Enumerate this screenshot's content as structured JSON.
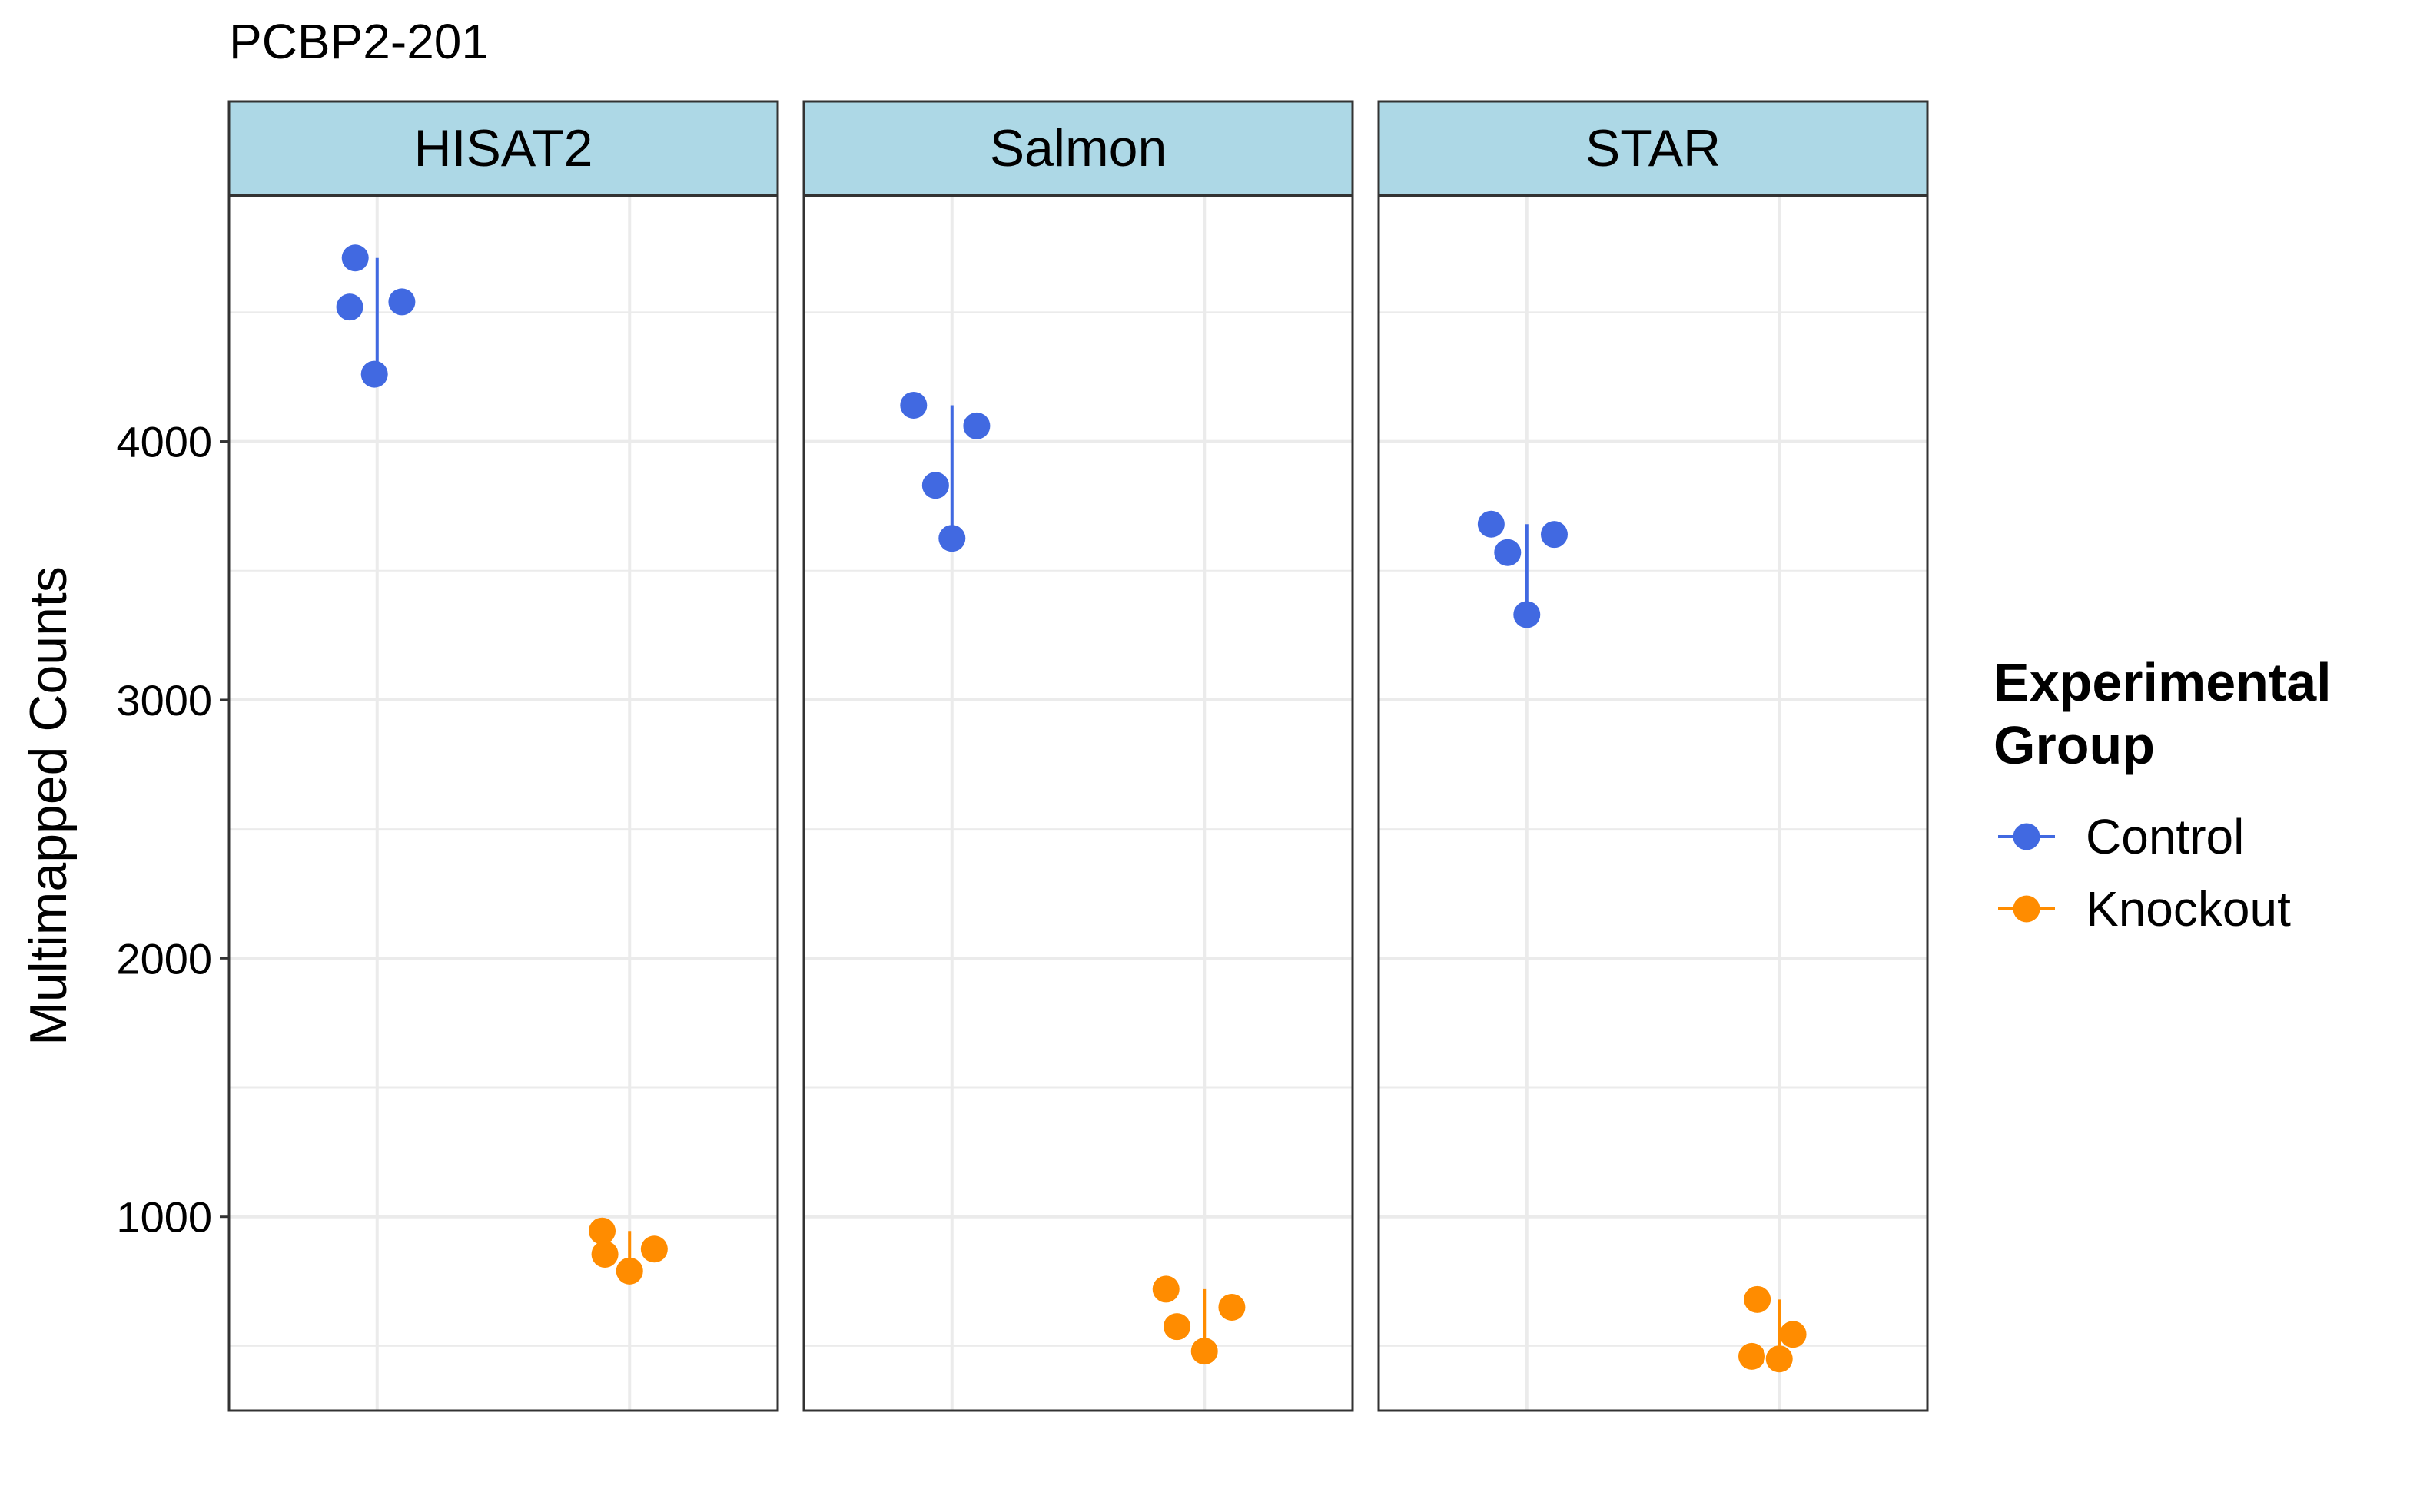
{
  "chart_data": {
    "type": "scatter",
    "title": "PCBP2-201",
    "ylabel": "Multimapped Counts",
    "xlabel": "",
    "ylim": [
      250,
      4950
    ],
    "yticks": [
      1000,
      2000,
      3000,
      4000
    ],
    "ytick_labels": [
      "1000",
      "2000",
      "3000",
      "4000"
    ],
    "grid": true,
    "groups": [
      "Control",
      "Knockout"
    ],
    "legend": {
      "title": "Experimental\nGroup",
      "position": "right",
      "entries": [
        "Control",
        "Knockout"
      ]
    },
    "colors": {
      "Control": "#4169E1",
      "Knockout": "#FF8C00"
    },
    "panels": [
      {
        "name": "HISAT2",
        "series": [
          {
            "name": "Control",
            "points": [
              {
                "jitter": -0.08,
                "y": 4710
              },
              {
                "jitter": -0.1,
                "y": 4520
              },
              {
                "jitter": 0.09,
                "y": 4540
              },
              {
                "jitter": -0.01,
                "y": 4260
              }
            ],
            "range": [
              4260,
              4710
            ]
          },
          {
            "name": "Knockout",
            "points": [
              {
                "jitter": -0.1,
                "y": 945
              },
              {
                "jitter": -0.09,
                "y": 855
              },
              {
                "jitter": 0.09,
                "y": 875
              },
              {
                "jitter": 0.0,
                "y": 790
              }
            ],
            "range": [
              790,
              945
            ]
          }
        ]
      },
      {
        "name": "Salmon",
        "series": [
          {
            "name": "Control",
            "points": [
              {
                "jitter": -0.14,
                "y": 4140
              },
              {
                "jitter": 0.09,
                "y": 4060
              },
              {
                "jitter": -0.06,
                "y": 3830
              },
              {
                "jitter": 0.0,
                "y": 3625
              }
            ],
            "range": [
              3625,
              4140
            ]
          },
          {
            "name": "Knockout",
            "points": [
              {
                "jitter": -0.14,
                "y": 720
              },
              {
                "jitter": 0.1,
                "y": 650
              },
              {
                "jitter": -0.1,
                "y": 575
              },
              {
                "jitter": 0.0,
                "y": 480
              }
            ],
            "range": [
              480,
              720
            ]
          }
        ]
      },
      {
        "name": "STAR",
        "series": [
          {
            "name": "Control",
            "points": [
              {
                "jitter": -0.13,
                "y": 3680
              },
              {
                "jitter": 0.1,
                "y": 3640
              },
              {
                "jitter": -0.07,
                "y": 3570
              },
              {
                "jitter": 0.0,
                "y": 3330
              }
            ],
            "range": [
              3330,
              3680
            ]
          },
          {
            "name": "Knockout",
            "points": [
              {
                "jitter": -0.08,
                "y": 680
              },
              {
                "jitter": 0.05,
                "y": 545
              },
              {
                "jitter": -0.1,
                "y": 460
              },
              {
                "jitter": 0.0,
                "y": 450
              }
            ],
            "range": [
              450,
              680
            ]
          }
        ]
      }
    ]
  }
}
